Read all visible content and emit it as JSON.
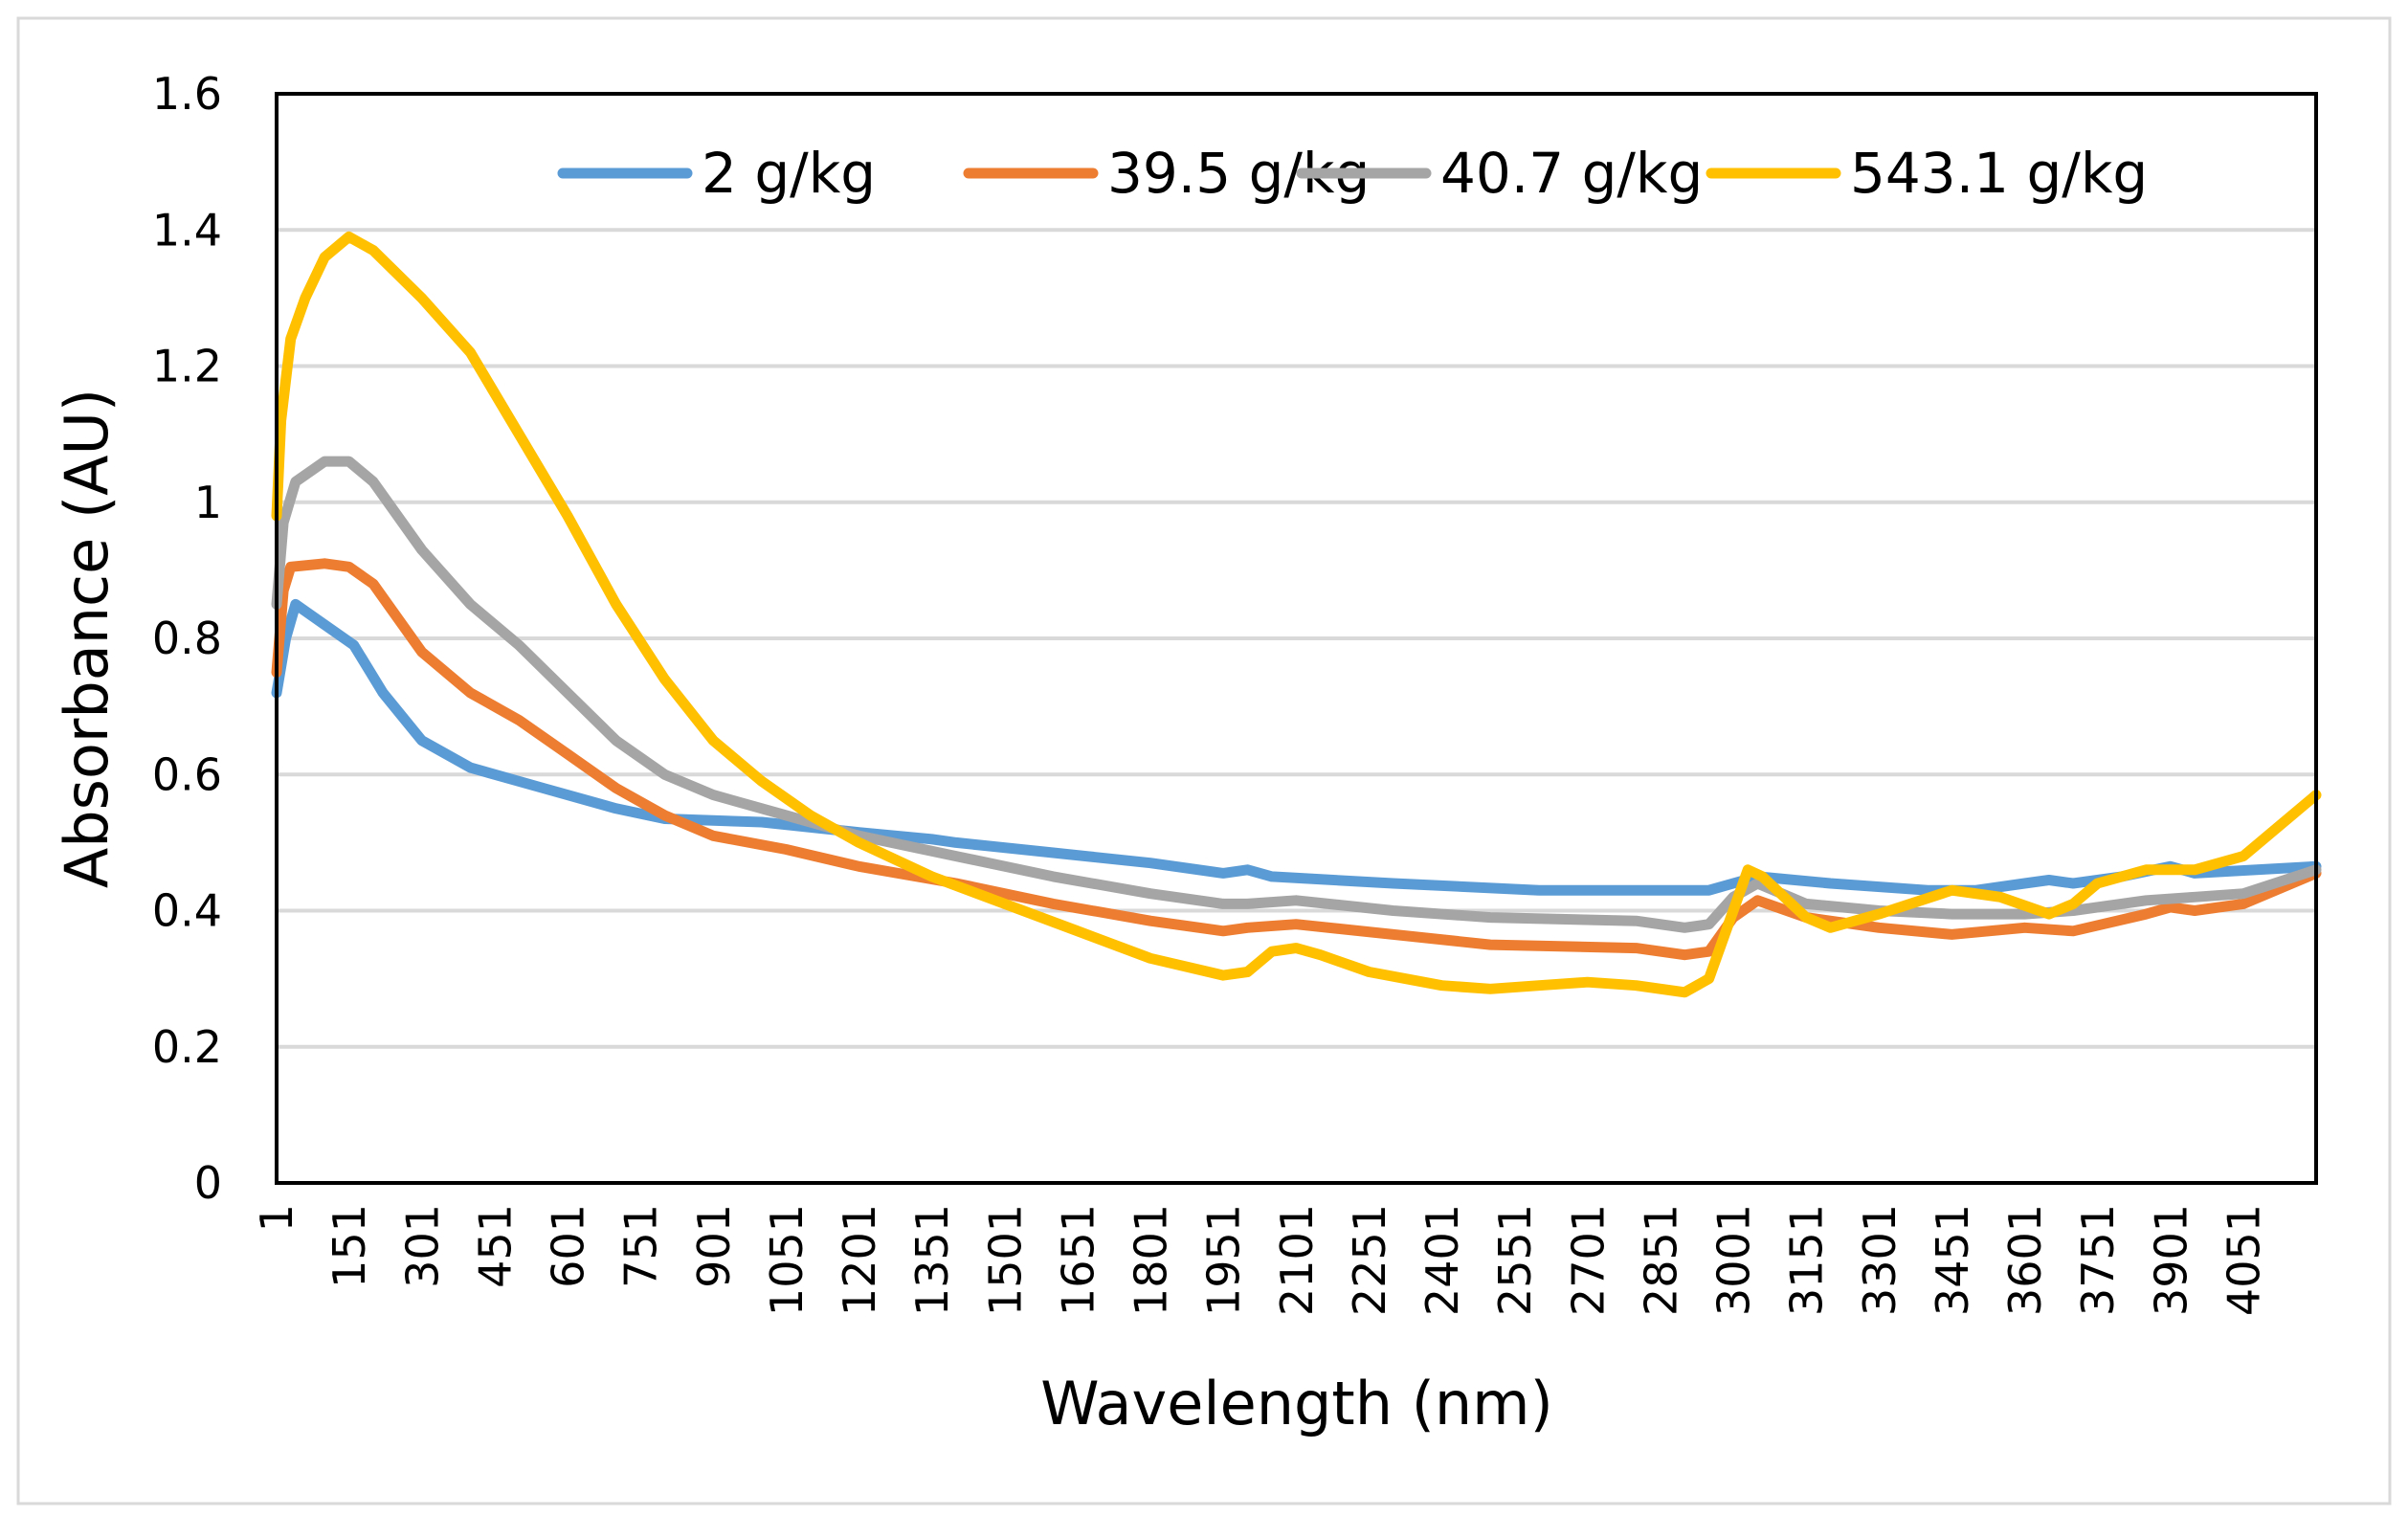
{
  "chart_data": {
    "type": "line",
    "title": "",
    "xlabel": "Wavelength (nm)",
    "ylabel": "Absorbance (AU)",
    "xlim": [
      1,
      4200
    ],
    "ylim": [
      0,
      1.6
    ],
    "grid": true,
    "legend_position": "top",
    "y_ticks": [
      "0",
      "0.2",
      "0.4",
      "0.6",
      "0.8",
      "1",
      "1.2",
      "1.4",
      "1.6"
    ],
    "y_tick_values": [
      0,
      0.2,
      0.4,
      0.6,
      0.8,
      1,
      1.2,
      1.4,
      1.6
    ],
    "x_ticks": [
      "1",
      "151",
      "301",
      "451",
      "601",
      "751",
      "901",
      "1051",
      "1201",
      "1351",
      "1501",
      "1651",
      "1801",
      "1951",
      "2101",
      "2251",
      "2401",
      "2551",
      "2701",
      "2851",
      "3001",
      "3151",
      "3301",
      "3451",
      "3601",
      "3751",
      "3901",
      "4051"
    ],
    "series": [
      {
        "name": "2 g/kg",
        "color": "#5b9bd5",
        "x": [
          1,
          20,
          40,
          100,
          160,
          220,
          300,
          400,
          550,
          700,
          800,
          1000,
          1200,
          1350,
          1400,
          1600,
          1800,
          1950,
          2000,
          2050,
          2300,
          2600,
          2950,
          3000,
          3050,
          3200,
          3400,
          3500,
          3600,
          3650,
          3700,
          3800,
          3900,
          3950,
          4200
        ],
        "y": [
          0.72,
          0.8,
          0.85,
          0.82,
          0.79,
          0.72,
          0.65,
          0.61,
          0.58,
          0.55,
          0.535,
          0.53,
          0.515,
          0.505,
          0.5,
          0.485,
          0.47,
          0.455,
          0.46,
          0.45,
          0.44,
          0.43,
          0.43,
          0.44,
          0.45,
          0.44,
          0.43,
          0.43,
          0.44,
          0.445,
          0.44,
          0.45,
          0.465,
          0.455,
          0.465
        ]
      },
      {
        "name": "39.5 g/kg",
        "color": "#ed7d31",
        "x": [
          1,
          15,
          30,
          100,
          150,
          200,
          300,
          400,
          500,
          600,
          700,
          800,
          900,
          1050,
          1200,
          1400,
          1600,
          1800,
          1950,
          2000,
          2100,
          2300,
          2500,
          2800,
          2900,
          2950,
          3000,
          3050,
          3150,
          3300,
          3450,
          3600,
          3700,
          3850,
          3900,
          3950,
          4050,
          4200
        ],
        "y": [
          0.75,
          0.87,
          0.905,
          0.91,
          0.905,
          0.88,
          0.78,
          0.72,
          0.68,
          0.63,
          0.58,
          0.54,
          0.51,
          0.49,
          0.465,
          0.44,
          0.41,
          0.385,
          0.37,
          0.375,
          0.38,
          0.365,
          0.35,
          0.345,
          0.335,
          0.34,
          0.39,
          0.415,
          0.39,
          0.375,
          0.365,
          0.375,
          0.37,
          0.395,
          0.405,
          0.4,
          0.41,
          0.455
        ]
      },
      {
        "name": "40.7 g/kg",
        "color": "#a5a5a5",
        "x": [
          1,
          15,
          40,
          100,
          150,
          200,
          300,
          400,
          500,
          600,
          700,
          800,
          900,
          1050,
          1200,
          1400,
          1600,
          1800,
          1950,
          2000,
          2100,
          2300,
          2500,
          2800,
          2900,
          2950,
          3000,
          3050,
          3150,
          3300,
          3450,
          3600,
          3700,
          3850,
          3950,
          4050,
          4200
        ],
        "y": [
          0.85,
          0.97,
          1.03,
          1.06,
          1.06,
          1.03,
          0.93,
          0.85,
          0.79,
          0.72,
          0.65,
          0.6,
          0.57,
          0.54,
          0.51,
          0.48,
          0.45,
          0.425,
          0.41,
          0.41,
          0.415,
          0.4,
          0.39,
          0.385,
          0.375,
          0.38,
          0.42,
          0.44,
          0.41,
          0.4,
          0.395,
          0.395,
          0.4,
          0.415,
          0.42,
          0.425,
          0.46
        ]
      },
      {
        "name": "543.1 g/kg",
        "color": "#ffc000",
        "x": [
          1,
          10,
          30,
          60,
          100,
          150,
          200,
          300,
          400,
          500,
          600,
          700,
          800,
          900,
          1000,
          1100,
          1200,
          1350,
          1500,
          1650,
          1800,
          1950,
          2000,
          2050,
          2100,
          2150,
          2250,
          2400,
          2500,
          2600,
          2700,
          2800,
          2900,
          2950,
          3000,
          3030,
          3060,
          3150,
          3200,
          3300,
          3450,
          3550,
          3650,
          3700,
          3750,
          3850,
          3950,
          4050,
          4150,
          4200
        ],
        "y": [
          0.98,
          1.12,
          1.24,
          1.3,
          1.36,
          1.39,
          1.37,
          1.3,
          1.22,
          1.1,
          0.98,
          0.85,
          0.74,
          0.65,
          0.59,
          0.54,
          0.5,
          0.45,
          0.41,
          0.37,
          0.33,
          0.305,
          0.31,
          0.34,
          0.345,
          0.335,
          0.31,
          0.29,
          0.285,
          0.29,
          0.295,
          0.29,
          0.28,
          0.3,
          0.4,
          0.46,
          0.45,
          0.39,
          0.375,
          0.395,
          0.43,
          0.42,
          0.395,
          0.41,
          0.44,
          0.46,
          0.46,
          0.48,
          0.54,
          0.57
        ]
      }
    ]
  }
}
